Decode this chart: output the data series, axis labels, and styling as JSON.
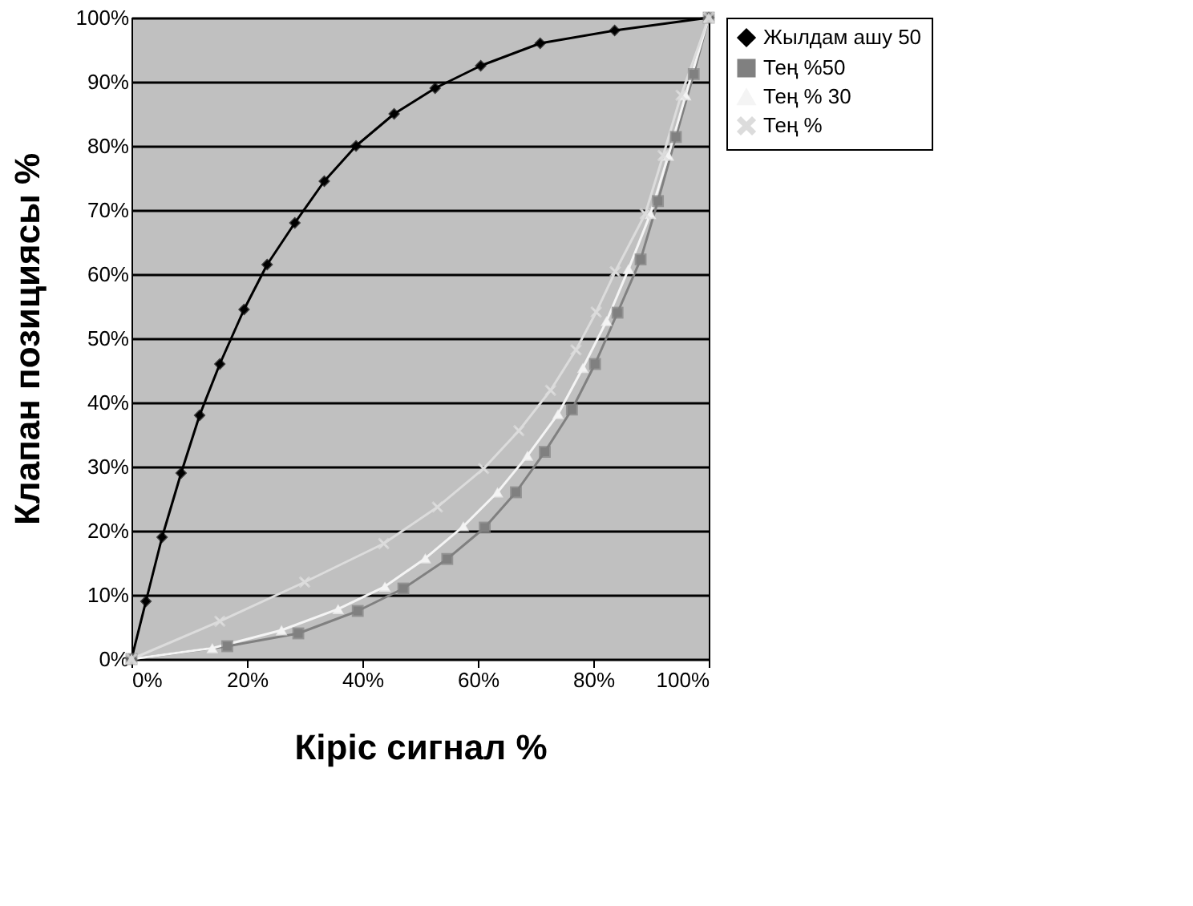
{
  "chart_data": {
    "type": "line",
    "xlabel": "Кіріс сигнал %",
    "ylabel": "Клапан позициясы %",
    "xlim": [
      0,
      100
    ],
    "ylim": [
      0,
      100
    ],
    "xticks": [
      {
        "value": 0,
        "label": "0%"
      },
      {
        "value": 20,
        "label": "20%"
      },
      {
        "value": 40,
        "label": "40%"
      },
      {
        "value": 60,
        "label": "60%"
      },
      {
        "value": 80,
        "label": "80%"
      },
      {
        "value": 100,
        "label": "100%"
      }
    ],
    "yticks": [
      {
        "value": 0,
        "label": "0%"
      },
      {
        "value": 10,
        "label": "10%"
      },
      {
        "value": 20,
        "label": "20%"
      },
      {
        "value": 30,
        "label": "30%"
      },
      {
        "value": 40,
        "label": "40%"
      },
      {
        "value": 50,
        "label": "50%"
      },
      {
        "value": 60,
        "label": "60%"
      },
      {
        "value": 70,
        "label": "70%"
      },
      {
        "value": 80,
        "label": "80%"
      },
      {
        "value": 90,
        "label": "90%"
      },
      {
        "value": 100,
        "label": "100%"
      }
    ],
    "grid": "y",
    "legend": "right",
    "line_style": "solid",
    "series": [
      {
        "name": "Жылдам ашу 50",
        "color": "#000000",
        "marker": "diamond",
        "x": [
          0,
          2.5,
          5.3,
          8.6,
          11.8,
          15.3,
          19.5,
          23.5,
          28.3,
          33.4,
          38.9,
          45.5,
          52.6,
          60.5,
          70.8,
          83.7,
          100
        ],
        "values": [
          0,
          9,
          19,
          29,
          38,
          46,
          54.5,
          61.5,
          68,
          74.5,
          80,
          85,
          89,
          92.5,
          96,
          98,
          100
        ]
      },
      {
        "name": "Тең %50",
        "color": "#808080",
        "marker": "square",
        "x": [
          0,
          16.6,
          28.9,
          39.2,
          47.1,
          54.7,
          61.2,
          66.6,
          71.6,
          76.3,
          80.3,
          84.2,
          88.2,
          91.2,
          94.3,
          97.4,
          100
        ],
        "values": [
          0,
          2,
          4,
          7.5,
          11,
          15.6,
          20.5,
          26,
          32.3,
          38.9,
          46,
          54,
          62.3,
          71.4,
          81.4,
          91.2,
          100
        ]
      },
      {
        "name": "Тең % 30",
        "color": "#f4f4f4",
        "marker": "triangle",
        "x": [
          0,
          14,
          26,
          35.8,
          43.9,
          50.9,
          57.5,
          63.4,
          68.6,
          73.9,
          78.2,
          82.3,
          86.1,
          89.9,
          93,
          96,
          100
        ],
        "values": [
          0,
          1.7,
          4.5,
          7.8,
          11.3,
          15.7,
          20.7,
          26,
          31.7,
          38.2,
          45.4,
          52.7,
          60.8,
          69.4,
          78.5,
          87.9,
          100
        ]
      },
      {
        "name": "Тең %",
        "color": "#dcdcdc",
        "marker": "cross",
        "x": [
          0,
          15.3,
          30,
          43.7,
          53,
          61,
          67.1,
          72.6,
          77,
          80.5,
          83.8,
          89,
          92.1,
          95.2,
          100
        ],
        "values": [
          0,
          5.9,
          12,
          18,
          23.7,
          29.7,
          35.6,
          41.9,
          48.2,
          54.1,
          60.4,
          69.4,
          78.5,
          87.9,
          100
        ]
      }
    ]
  }
}
